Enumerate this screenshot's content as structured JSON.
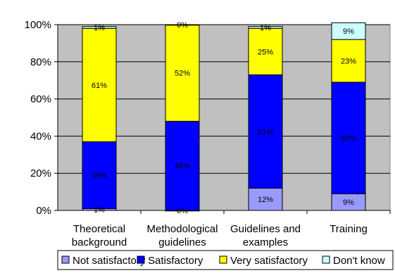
{
  "chart_data": {
    "type": "bar",
    "stacked": true,
    "percent_stacked": true,
    "categories": [
      [
        "Theoretical",
        "background"
      ],
      [
        "Methodological",
        "guidelines"
      ],
      [
        "Guidelines and",
        "examples"
      ],
      [
        "Training"
      ]
    ],
    "series": [
      {
        "name": "Not satisfactory",
        "color": "#9999ff",
        "values": [
          1,
          0,
          12,
          9
        ],
        "labels": [
          "1%",
          "0%",
          "12%",
          "9%"
        ]
      },
      {
        "name": "Satisfactory",
        "color": "#0000ff",
        "values": [
          36,
          48,
          61,
          60
        ],
        "labels": [
          "36%",
          "48%",
          "61%",
          "60%"
        ]
      },
      {
        "name": "Very satisfactory",
        "color": "#ffff00",
        "values": [
          61,
          52,
          25,
          23
        ],
        "labels": [
          "61%",
          "52%",
          "25%",
          "23%"
        ]
      },
      {
        "name": "Don't know",
        "color": "#ccffff",
        "values": [
          1,
          0,
          1,
          9
        ],
        "labels": [
          "1%",
          "0%",
          "1%",
          "9%"
        ]
      }
    ],
    "yticks": [
      "0%",
      "20%",
      "40%",
      "60%",
      "80%",
      "100%"
    ],
    "ylim": [
      0,
      100
    ],
    "plot_background": "#c0c0c0",
    "legend_position": "bottom",
    "grid": true
  }
}
